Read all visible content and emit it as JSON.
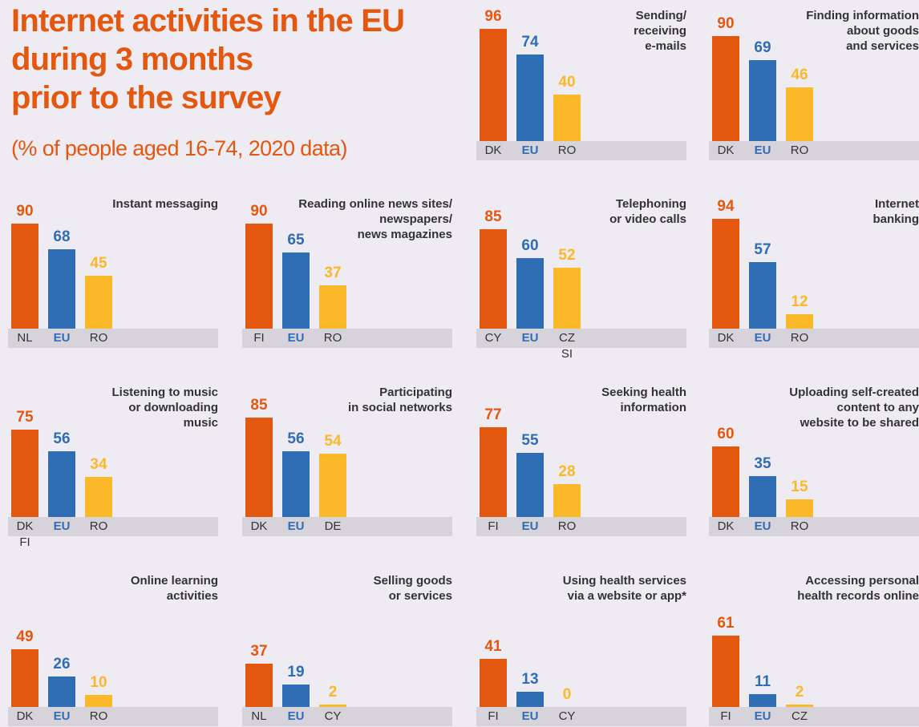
{
  "title": "Internet activities in the EU\nduring 3 months\nprior to the survey",
  "subtitle": "(% of people aged 16-74, 2020 data)",
  "chart_data": [
    {
      "type": "bar",
      "title": "Sending/\nreceiving\ne-mails",
      "categories": [
        "DK",
        "EU",
        "RO"
      ],
      "values": [
        96,
        74,
        40
      ],
      "colors": [
        "#e4570f",
        "#2f6db5",
        "#fbb829"
      ],
      "ylim": [
        0,
        100
      ]
    },
    {
      "type": "bar",
      "title": "Finding information\nabout goods\nand services",
      "categories": [
        "DK",
        "EU",
        "RO"
      ],
      "values": [
        90,
        69,
        46
      ],
      "colors": [
        "#e4570f",
        "#2f6db5",
        "#fbb829"
      ],
      "ylim": [
        0,
        100
      ]
    },
    {
      "type": "bar",
      "title": "Instant messaging",
      "categories": [
        "NL",
        "EU",
        "RO"
      ],
      "values": [
        90,
        68,
        45
      ],
      "colors": [
        "#e4570f",
        "#2f6db5",
        "#fbb829"
      ],
      "ylim": [
        0,
        100
      ]
    },
    {
      "type": "bar",
      "title": "Reading online news sites/\nnewspapers/\nnews magazines",
      "categories": [
        "FI",
        "EU",
        "RO"
      ],
      "values": [
        90,
        65,
        37
      ],
      "colors": [
        "#e4570f",
        "#2f6db5",
        "#fbb829"
      ],
      "ylim": [
        0,
        100
      ]
    },
    {
      "type": "bar",
      "title": "Telephoning\nor video calls",
      "categories": [
        "CY",
        "EU",
        "CZ\nSI"
      ],
      "values": [
        85,
        60,
        52
      ],
      "colors": [
        "#e4570f",
        "#2f6db5",
        "#fbb829"
      ],
      "ylim": [
        0,
        100
      ]
    },
    {
      "type": "bar",
      "title": "Internet\nbanking",
      "categories": [
        "DK",
        "EU",
        "RO"
      ],
      "values": [
        94,
        57,
        12
      ],
      "colors": [
        "#e4570f",
        "#2f6db5",
        "#fbb829"
      ],
      "ylim": [
        0,
        100
      ]
    },
    {
      "type": "bar",
      "title": "Listening to music\nor downloading\nmusic",
      "categories": [
        "DK\nFI",
        "EU",
        "RO"
      ],
      "values": [
        75,
        56,
        34
      ],
      "colors": [
        "#e4570f",
        "#2f6db5",
        "#fbb829"
      ],
      "ylim": [
        0,
        100
      ]
    },
    {
      "type": "bar",
      "title": "Participating\nin social networks",
      "categories": [
        "DK",
        "EU",
        "DE"
      ],
      "values": [
        85,
        56,
        54
      ],
      "colors": [
        "#e4570f",
        "#2f6db5",
        "#fbb829"
      ],
      "ylim": [
        0,
        100
      ]
    },
    {
      "type": "bar",
      "title": "Seeking health\ninformation",
      "categories": [
        "FI",
        "EU",
        "RO"
      ],
      "values": [
        77,
        55,
        28
      ],
      "colors": [
        "#e4570f",
        "#2f6db5",
        "#fbb829"
      ],
      "ylim": [
        0,
        100
      ]
    },
    {
      "type": "bar",
      "title": "Uploading self-created\ncontent to any\nwebsite to be shared",
      "categories": [
        "DK",
        "EU",
        "RO"
      ],
      "values": [
        60,
        35,
        15
      ],
      "colors": [
        "#e4570f",
        "#2f6db5",
        "#fbb829"
      ],
      "ylim": [
        0,
        100
      ]
    },
    {
      "type": "bar",
      "title": "Online learning\nactivities",
      "categories": [
        "DK",
        "EU",
        "RO"
      ],
      "values": [
        49,
        26,
        10
      ],
      "colors": [
        "#e4570f",
        "#2f6db5",
        "#fbb829"
      ],
      "ylim": [
        0,
        100
      ]
    },
    {
      "type": "bar",
      "title": "Selling goods\nor services",
      "categories": [
        "NL",
        "EU",
        "CY"
      ],
      "values": [
        37,
        19,
        2
      ],
      "colors": [
        "#e4570f",
        "#2f6db5",
        "#fbb829"
      ],
      "ylim": [
        0,
        100
      ]
    },
    {
      "type": "bar",
      "title": "Using health services\nvia a website or app*",
      "categories": [
        "FI",
        "EU",
        "CY"
      ],
      "values": [
        41,
        13,
        0
      ],
      "colors": [
        "#e4570f",
        "#2f6db5",
        "#fbb829"
      ],
      "ylim": [
        0,
        100
      ]
    },
    {
      "type": "bar",
      "title": "Accessing personal\nhealth records online",
      "categories": [
        "FI",
        "EU",
        "CZ"
      ],
      "values": [
        61,
        11,
        2
      ],
      "colors": [
        "#e4570f",
        "#2f6db5",
        "#fbb829"
      ],
      "ylim": [
        0,
        100
      ]
    }
  ]
}
